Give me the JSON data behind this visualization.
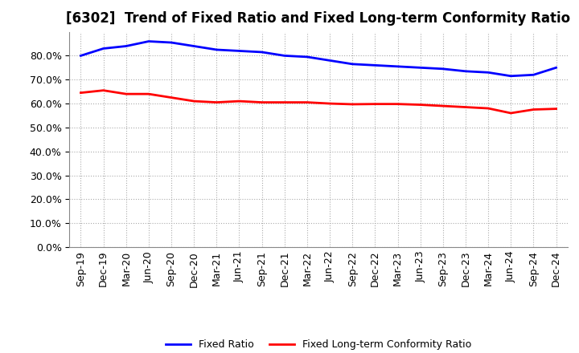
{
  "title": "[6302]  Trend of Fixed Ratio and Fixed Long-term Conformity Ratio",
  "x_labels": [
    "Sep-19",
    "Dec-19",
    "Mar-20",
    "Jun-20",
    "Sep-20",
    "Dec-20",
    "Mar-21",
    "Jun-21",
    "Sep-21",
    "Dec-21",
    "Mar-22",
    "Jun-22",
    "Sep-22",
    "Dec-22",
    "Mar-23",
    "Jun-23",
    "Sep-23",
    "Dec-23",
    "Mar-24",
    "Jun-24",
    "Sep-24",
    "Dec-24"
  ],
  "fixed_ratio": [
    0.8,
    0.83,
    0.84,
    0.86,
    0.855,
    0.84,
    0.825,
    0.82,
    0.815,
    0.8,
    0.795,
    0.78,
    0.765,
    0.76,
    0.755,
    0.75,
    0.745,
    0.735,
    0.73,
    0.715,
    0.72,
    0.75
  ],
  "fixed_lt_ratio": [
    0.645,
    0.655,
    0.64,
    0.64,
    0.625,
    0.61,
    0.605,
    0.61,
    0.605,
    0.605,
    0.605,
    0.6,
    0.597,
    0.598,
    0.598,
    0.595,
    0.59,
    0.585,
    0.58,
    0.56,
    0.575,
    0.578
  ],
  "fixed_ratio_color": "#0000FF",
  "fixed_lt_ratio_color": "#FF0000",
  "bg_color": "#FFFFFF",
  "plot_bg_color": "#FFFFFF",
  "grid_color": "#AAAAAA",
  "ylim": [
    0.0,
    0.9
  ],
  "yticks": [
    0.0,
    0.1,
    0.2,
    0.3,
    0.4,
    0.5,
    0.6,
    0.7,
    0.8
  ],
  "legend_fixed_ratio": "Fixed Ratio",
  "legend_fixed_lt_ratio": "Fixed Long-term Conformity Ratio",
  "line_width": 2.0,
  "title_fontsize": 12,
  "tick_fontsize": 9
}
